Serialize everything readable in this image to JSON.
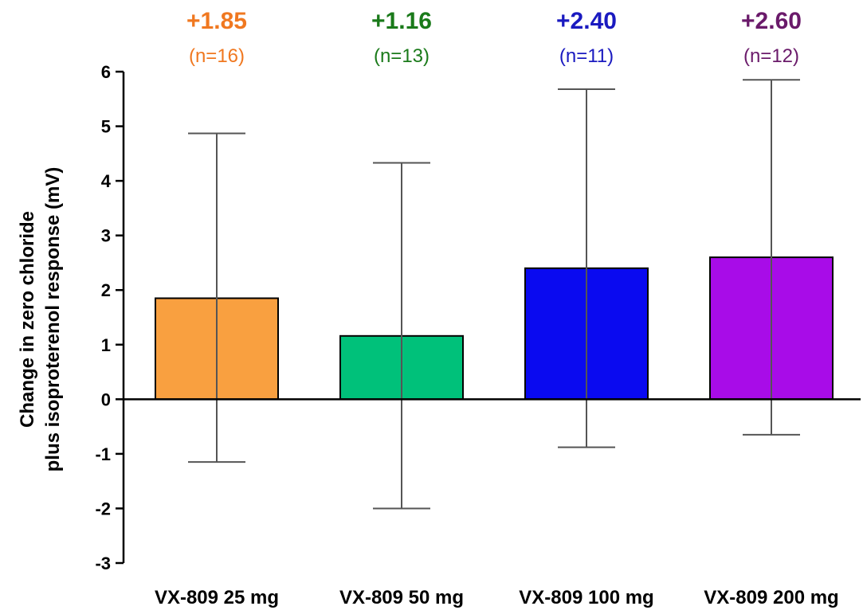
{
  "chart_data": {
    "type": "bar",
    "categories": [
      "VX-809 25 mg",
      "VX-809 50 mg",
      "VX-809 100 mg",
      "VX-809 200 mg"
    ],
    "values": [
      1.85,
      1.16,
      2.4,
      2.6
    ],
    "error_upper": [
      4.87,
      4.33,
      5.68,
      5.85
    ],
    "error_lower": [
      -1.15,
      -2.0,
      -0.88,
      -0.65
    ],
    "value_labels": [
      "+1.85",
      "+1.16",
      "+2.40",
      "+2.60"
    ],
    "n_labels": [
      "(n=16)",
      "(n=13)",
      "(n=11)",
      "(n=12)"
    ],
    "bar_colors": [
      "#F9A040",
      "#00C17A",
      "#0A0AF0",
      "#A80CE8"
    ],
    "label_colors": [
      "#F07820",
      "#1A7A1A",
      "#1A1AC0",
      "#6A1A6A"
    ],
    "ylabel_line1": "Change in zero chloride",
    "ylabel_line2": "plus isoproterenol response (mV)",
    "ylim": [
      -3,
      6
    ],
    "yticks": [
      "-3",
      "-2",
      "-1",
      "0",
      "1",
      "2",
      "3",
      "4",
      "5",
      "6"
    ],
    "grid": false,
    "legend": "none"
  }
}
